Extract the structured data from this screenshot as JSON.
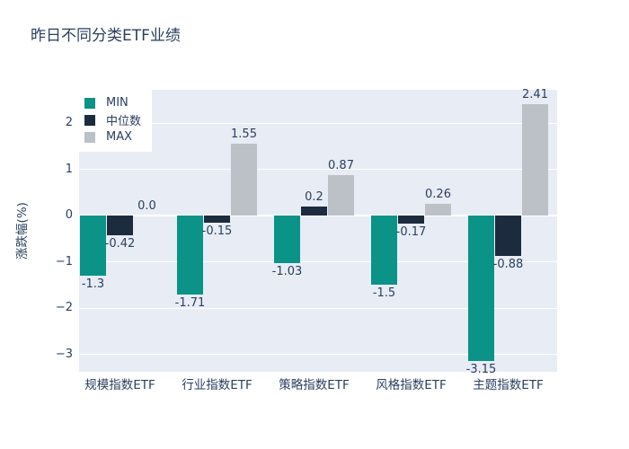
{
  "colors": {
    "font": "#2a3f5f",
    "plot_background": "#e8ecf4",
    "grid": "#ffffff",
    "figure_background": "#ffffff",
    "min_series": "#0a9386",
    "median_series": "#1c2b3e",
    "max_series": "#bcc1c8"
  },
  "chart_data": {
    "type": "bar",
    "title": "昨日不同分类ETF业绩",
    "xlabel": "",
    "ylabel": "涨跌幅(%)",
    "categories": [
      "规模指数ETF",
      "行业指数ETF",
      "策略指数ETF",
      "风格指数ETF",
      "主题指数ETF"
    ],
    "series": [
      {
        "key": "min",
        "name": "MIN",
        "color": "#0a9386",
        "values": [
          -1.3,
          -1.71,
          -1.03,
          -1.5,
          -3.15
        ],
        "labels": [
          "-1.3",
          "-1.71",
          "-1.03",
          "-1.5",
          "-3.15"
        ]
      },
      {
        "key": "median",
        "name": "中位数",
        "color": "#1c2b3e",
        "values": [
          -0.42,
          -0.15,
          0.2,
          -0.17,
          -0.88
        ],
        "labels": [
          "-0.42",
          "-0.15",
          "0.2",
          "-0.17",
          "-0.88"
        ]
      },
      {
        "key": "max",
        "name": "MAX",
        "color": "#bcc1c8",
        "values": [
          0.0,
          1.55,
          0.87,
          0.26,
          2.41
        ],
        "labels": [
          "0.0",
          "1.55",
          "0.87",
          "0.26",
          "2.41"
        ]
      }
    ],
    "yticks": [
      {
        "value": 2,
        "label": "2"
      },
      {
        "value": 1,
        "label": "1"
      },
      {
        "value": 0,
        "label": "0"
      },
      {
        "value": -1,
        "label": "−1"
      },
      {
        "value": -2,
        "label": "−2"
      },
      {
        "value": -3,
        "label": "−3"
      }
    ],
    "ylim": [
      -3.53,
      2.72
    ],
    "grid": true,
    "legend_position": "inside-top-left"
  }
}
